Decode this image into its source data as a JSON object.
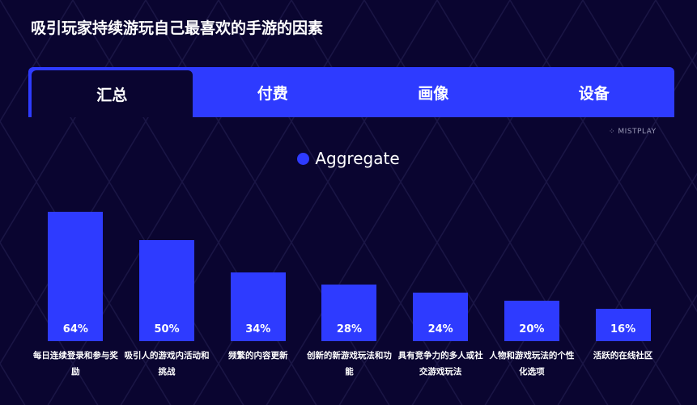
{
  "title": "吸引玩家持续游玩自己最喜欢的手游的因素",
  "tabs": [
    "汇总",
    "付费",
    "画像",
    "设备"
  ],
  "watermark": "MISTPLAY",
  "chart_data": {
    "type": "bar",
    "categories": [
      "每日连续登录和参与奖励",
      "吸引人的游戏内活动和挑战",
      "频繁的内容更新",
      "创新的新游戏玩法和功能",
      "具有竞争力的多人或社交游戏玩法",
      "人物和游戏玩法的个性化选项",
      "活跃的在线社区"
    ],
    "series": [
      {
        "name": "Aggregate",
        "color": "#2e3bff",
        "values": [
          64,
          50,
          34,
          28,
          24,
          20,
          16
        ],
        "value_labels": [
          "64%",
          "50%",
          "34%",
          "28%",
          "24%",
          "20%",
          "16%"
        ]
      }
    ]
  }
}
